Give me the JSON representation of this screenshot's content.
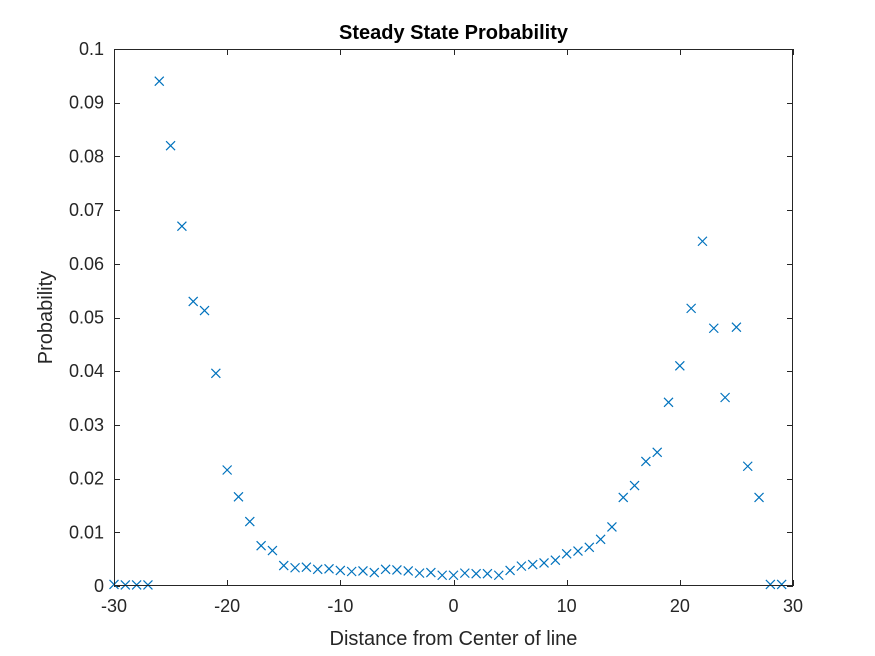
{
  "chart_data": {
    "type": "scatter",
    "title": "Steady State Probability",
    "xlabel": "Distance from Center of line",
    "ylabel": "Probability",
    "xlim": [
      -30,
      30
    ],
    "ylim": [
      0,
      0.1
    ],
    "xticks": [
      -30,
      -20,
      -10,
      0,
      10,
      20,
      30
    ],
    "xtick_labels": [
      "-30",
      "-20",
      "-10",
      "0",
      "10",
      "20",
      "30"
    ],
    "yticks": [
      0,
      0.01,
      0.02,
      0.03,
      0.04,
      0.05,
      0.06,
      0.07,
      0.08,
      0.09,
      0.1
    ],
    "ytick_labels": [
      "0",
      "0.01",
      "0.02",
      "0.03",
      "0.04",
      "0.05",
      "0.06",
      "0.07",
      "0.08",
      "0.09",
      "0.1"
    ],
    "marker": "x",
    "grid": false,
    "color": "#0072BD",
    "x": [
      -30,
      -29,
      -28,
      -27,
      -26,
      -25,
      -24,
      -23,
      -22,
      -21,
      -20,
      -19,
      -18,
      -17,
      -16,
      -15,
      -14,
      -13,
      -12,
      -11,
      -10,
      -9,
      -8,
      -7,
      -6,
      -5,
      -4,
      -3,
      -2,
      -1,
      0,
      1,
      2,
      3,
      4,
      5,
      6,
      7,
      8,
      9,
      10,
      11,
      12,
      13,
      14,
      15,
      16,
      17,
      18,
      19,
      20,
      21,
      22,
      23,
      24,
      25,
      26,
      27,
      28,
      29
    ],
    "y": [
      0.0003,
      0.0002,
      0.0002,
      0.0002,
      0.094,
      0.082,
      0.067,
      0.053,
      0.0513,
      0.0396,
      0.0216,
      0.0166,
      0.012,
      0.0075,
      0.0066,
      0.0038,
      0.0034,
      0.0035,
      0.0031,
      0.0032,
      0.0029,
      0.0027,
      0.0028,
      0.0025,
      0.0031,
      0.003,
      0.0028,
      0.0024,
      0.0025,
      0.002,
      0.002,
      0.0024,
      0.0023,
      0.0023,
      0.002,
      0.0029,
      0.0037,
      0.004,
      0.0043,
      0.0048,
      0.006,
      0.0065,
      0.0072,
      0.0087,
      0.011,
      0.0165,
      0.0187,
      0.0232,
      0.0249,
      0.0342,
      0.041,
      0.0517,
      0.0642,
      0.048,
      0.0351,
      0.0482,
      0.0223,
      0.0165,
      0.0003,
      0.0003
    ]
  }
}
